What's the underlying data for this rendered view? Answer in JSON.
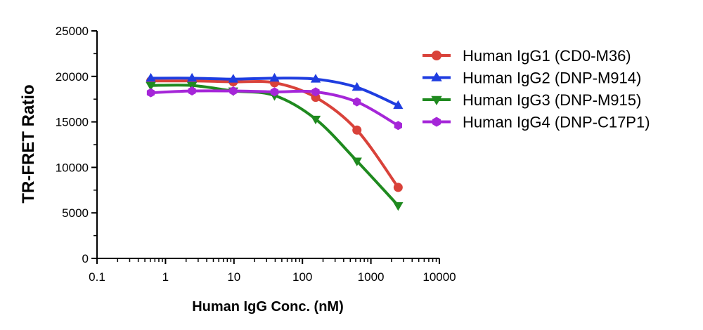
{
  "chart_data": {
    "type": "line",
    "xlabel": "Human IgG Conc. (nM)",
    "ylabel": "TR-FRET Ratio",
    "xscale": "log",
    "xlim": [
      0.1,
      10000
    ],
    "ylim": [
      0,
      25000
    ],
    "x_ticks": [
      0.1,
      1,
      10,
      100,
      1000,
      10000
    ],
    "x_tick_labels": [
      "0.1",
      "1",
      "10",
      "100",
      "1000",
      "10000"
    ],
    "y_ticks": [
      0,
      5000,
      10000,
      15000,
      20000,
      25000
    ],
    "y_tick_labels": [
      "0",
      "5000",
      "10000",
      "15000",
      "20000",
      "25000"
    ],
    "grid": false,
    "legend_position": "right",
    "x": [
      0.61,
      2.44,
      9.77,
      39.1,
      156,
      625,
      2500
    ],
    "series": [
      {
        "name": "Human IgG1 (CD0-M36)",
        "marker": "circle",
        "color": "#d9423a",
        "values": [
          19500,
          19500,
          19400,
          19300,
          17700,
          14100,
          7800
        ]
      },
      {
        "name": "Human IgG2 (DNP-M914)",
        "marker": "triangle-up",
        "color": "#1f3de0",
        "values": [
          19800,
          19800,
          19700,
          19800,
          19700,
          18800,
          16800
        ]
      },
      {
        "name": "Human IgG3 (DNP-M915)",
        "marker": "triangle-down",
        "color": "#1f8a1f",
        "values": [
          19000,
          19000,
          18400,
          17900,
          15300,
          10700,
          5800
        ]
      },
      {
        "name": "Human IgG4 (DNP-C17P1)",
        "marker": "hexagon",
        "color": "#a526d8",
        "values": [
          18200,
          18400,
          18400,
          18300,
          18300,
          17200,
          14600
        ]
      }
    ]
  }
}
